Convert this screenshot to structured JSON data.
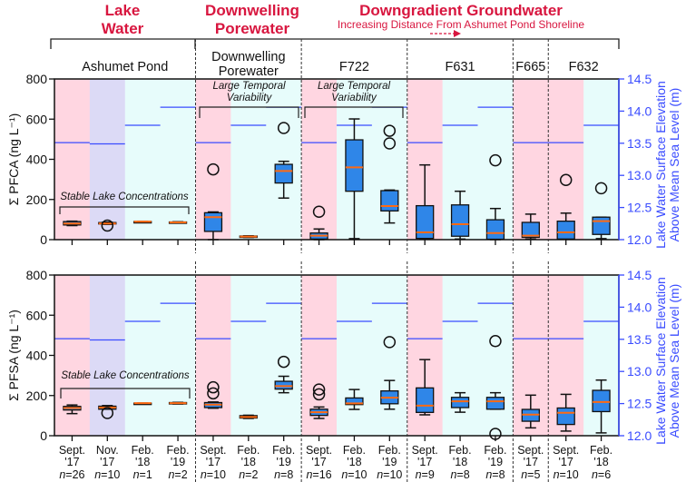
{
  "chart_data": {
    "type": "box",
    "headers": [
      {
        "lines": [
          "Lake",
          "Water"
        ]
      },
      {
        "lines": [
          "Downwelling",
          "Porewater"
        ]
      },
      {
        "lines": [
          "Downgradient Groundwater"
        ],
        "subtitle": "Increasing Distance From Ashumet Pond Shoreline"
      }
    ],
    "groups": [
      {
        "lines": [
          "Ashumet Pond"
        ],
        "columns": [
          0,
          1,
          2,
          3
        ]
      },
      {
        "lines": [
          "Downwelling",
          "Porewater"
        ],
        "columns": [
          4,
          5,
          6
        ]
      },
      {
        "lines": [
          "F722"
        ],
        "columns": [
          7,
          8,
          9
        ]
      },
      {
        "lines": [
          "F631"
        ],
        "columns": [
          10,
          11,
          12
        ]
      },
      {
        "lines": [
          "F665"
        ],
        "columns": [
          13
        ]
      },
      {
        "lines": [
          "F632"
        ],
        "columns": [
          14,
          15
        ]
      }
    ],
    "categories": [
      {
        "month": "Sept.",
        "year": "'17",
        "n": "=26",
        "season": "sept"
      },
      {
        "month": "Nov.",
        "year": "'17",
        "n": "=10",
        "season": "nov"
      },
      {
        "month": "Feb.",
        "year": "'18",
        "n": "=1",
        "season": "feb"
      },
      {
        "month": "Feb.",
        "year": "'19",
        "n": "=2",
        "season": "feb"
      },
      {
        "month": "Sept.",
        "year": "'17",
        "n": "=10",
        "season": "sept"
      },
      {
        "month": "Feb.",
        "year": "'18",
        "n": "=2",
        "season": "feb"
      },
      {
        "month": "Feb.",
        "year": "'19",
        "n": "=8",
        "season": "feb"
      },
      {
        "month": "Sept.",
        "year": "'17",
        "n": "=16",
        "season": "sept"
      },
      {
        "month": "Feb.",
        "year": "'18",
        "n": "=10",
        "season": "feb"
      },
      {
        "month": "Feb.",
        "year": "'19",
        "n": "=10",
        "season": "feb"
      },
      {
        "month": "Sept.",
        "year": "'17",
        "n": "=9",
        "season": "sept"
      },
      {
        "month": "Feb.",
        "year": "'18",
        "n": "=8",
        "season": "feb"
      },
      {
        "month": "Feb.",
        "year": "'19",
        "n": "=8",
        "season": "feb"
      },
      {
        "month": "Sept.",
        "year": "'17",
        "n": "=5",
        "season": "sept"
      },
      {
        "month": "Sept.",
        "year": "'17",
        "n": "=10",
        "season": "sept"
      },
      {
        "month": "Feb.",
        "year": "'18",
        "n": "=6",
        "season": "feb"
      }
    ],
    "lake_elevation_m": [
      13.51,
      13.49,
      13.78,
      14.06,
      13.51,
      13.78,
      14.06,
      13.51,
      13.78,
      14.06,
      13.51,
      13.78,
      14.06,
      13.51,
      13.51,
      13.78
    ],
    "panels": [
      {
        "ylabel": "Σ PFCA (ng L⁻¹)",
        "ylim": [
          0,
          800
        ],
        "yticks": [
          "0",
          "200",
          "400",
          "600",
          "800"
        ],
        "boxes": [
          {
            "lo": 70,
            "q1": 73,
            "med": 80,
            "q3": 90,
            "hi": 92,
            "out": []
          },
          {
            "lo": 76,
            "q1": 78,
            "med": 80,
            "q3": 85,
            "hi": 87,
            "out": [
              70
            ]
          },
          {
            "lo": 90,
            "q1": 90,
            "med": 90,
            "q3": 90,
            "hi": 90,
            "out": []
          },
          {
            "lo": 83,
            "q1": 84,
            "med": 86,
            "q3": 88,
            "hi": 89,
            "out": []
          },
          {
            "lo": 0,
            "q1": 41,
            "med": 112,
            "q3": 134,
            "hi": 138,
            "out": [
              350
            ]
          },
          {
            "lo": 11,
            "q1": 12,
            "med": 15,
            "q3": 18,
            "hi": 19,
            "out": []
          },
          {
            "lo": 207,
            "q1": 282,
            "med": 342,
            "q3": 375,
            "hi": 390,
            "out": [
              556
            ]
          },
          {
            "lo": 0,
            "q1": 3,
            "med": 20,
            "q3": 33,
            "hi": 53,
            "out": [
              139
            ]
          },
          {
            "lo": 5,
            "q1": 241,
            "med": 360,
            "q3": 497,
            "hi": 601,
            "out": []
          },
          {
            "lo": 83,
            "q1": 143,
            "med": 167,
            "q3": 244,
            "hi": 247,
            "out": [
              479,
              542
            ]
          },
          {
            "lo": 3,
            "q1": 6,
            "med": 36,
            "q3": 169,
            "hi": 372,
            "out": []
          },
          {
            "lo": 3,
            "q1": 17,
            "med": 77,
            "q3": 173,
            "hi": 241,
            "out": []
          },
          {
            "lo": 0,
            "q1": 2,
            "med": 33,
            "q3": 99,
            "hi": 155,
            "out": [
              395
            ]
          },
          {
            "lo": 3,
            "q1": 11,
            "med": 20,
            "q3": 86,
            "hi": 127,
            "out": []
          },
          {
            "lo": 2,
            "q1": 3,
            "med": 36,
            "q3": 92,
            "hi": 132,
            "out": [
              297
            ]
          },
          {
            "lo": 5,
            "q1": 26,
            "med": 92,
            "q3": 112,
            "hi": 112,
            "out": [
              256
            ]
          }
        ],
        "annotations": [
          {
            "lines": [
              "Stable Lake Concentrations"
            ]
          },
          {
            "lines": [
              "Large Temporal",
              "Variability"
            ]
          },
          {
            "lines": [
              "Large Temporal",
              "Variability"
            ]
          }
        ]
      },
      {
        "ylabel": "Σ PFSA (ng L⁻¹)",
        "ylim": [
          0,
          800
        ],
        "yticks": [
          "0",
          "200",
          "400",
          "600",
          "800"
        ],
        "boxes": [
          {
            "lo": 110,
            "q1": 128,
            "med": 138,
            "q3": 146,
            "hi": 153,
            "out": []
          },
          {
            "lo": 132,
            "q1": 132,
            "med": 140,
            "q3": 147,
            "hi": 150,
            "out": [
              113
            ]
          },
          {
            "lo": 162,
            "q1": 162,
            "med": 162,
            "q3": 162,
            "hi": 162,
            "out": []
          },
          {
            "lo": 158,
            "q1": 159,
            "med": 162,
            "q3": 165,
            "hi": 166,
            "out": []
          },
          {
            "lo": 137,
            "q1": 140,
            "med": 155,
            "q3": 165,
            "hi": 168,
            "out": [
              211,
              241
            ]
          },
          {
            "lo": 86,
            "q1": 88,
            "med": 93,
            "q3": 100,
            "hi": 102,
            "out": []
          },
          {
            "lo": 214,
            "q1": 232,
            "med": 247,
            "q3": 271,
            "hi": 296,
            "out": [
              368
            ]
          },
          {
            "lo": 86,
            "q1": 101,
            "med": 117,
            "q3": 132,
            "hi": 143,
            "out": [
              206,
              230
            ]
          },
          {
            "lo": 131,
            "q1": 155,
            "med": 161,
            "q3": 188,
            "hi": 230,
            "out": []
          },
          {
            "lo": 132,
            "q1": 159,
            "med": 189,
            "q3": 223,
            "hi": 275,
            "out": [
              466
            ]
          },
          {
            "lo": 104,
            "q1": 116,
            "med": 150,
            "q3": 238,
            "hi": 379,
            "out": []
          },
          {
            "lo": 117,
            "q1": 140,
            "med": 171,
            "q3": 191,
            "hi": 214,
            "out": []
          },
          {
            "lo": 132,
            "q1": 132,
            "med": 171,
            "q3": 191,
            "hi": 214,
            "out": [
              9,
              471
            ]
          },
          {
            "lo": 39,
            "q1": 72,
            "med": 105,
            "q3": 131,
            "hi": 202,
            "out": []
          },
          {
            "lo": 23,
            "q1": 56,
            "med": 114,
            "q3": 138,
            "hi": 206,
            "out": []
          },
          {
            "lo": 14,
            "q1": 120,
            "med": 168,
            "q3": 226,
            "hi": 277,
            "out": []
          }
        ],
        "annotations": [
          {
            "lines": [
              "Stable Lake Concentrations"
            ]
          }
        ]
      }
    ],
    "right_axis": {
      "label_lines": [
        "Lake Water Surface Elevation",
        "Above Mean Sea Level (m)"
      ],
      "ylim": [
        12.0,
        14.5
      ],
      "ticks": [
        "12.0",
        "12.5",
        "13.0",
        "13.5",
        "14.0",
        "14.5"
      ]
    },
    "n_prefix": "n",
    "colors": {
      "sept": "#ffd6e1",
      "nov": "#dcdaf6",
      "feb": "#e7fcfb",
      "box": "#2f86e8",
      "median": "#ff6a12",
      "lake_level": "#3a4cff",
      "header": "#d8163f"
    }
  }
}
